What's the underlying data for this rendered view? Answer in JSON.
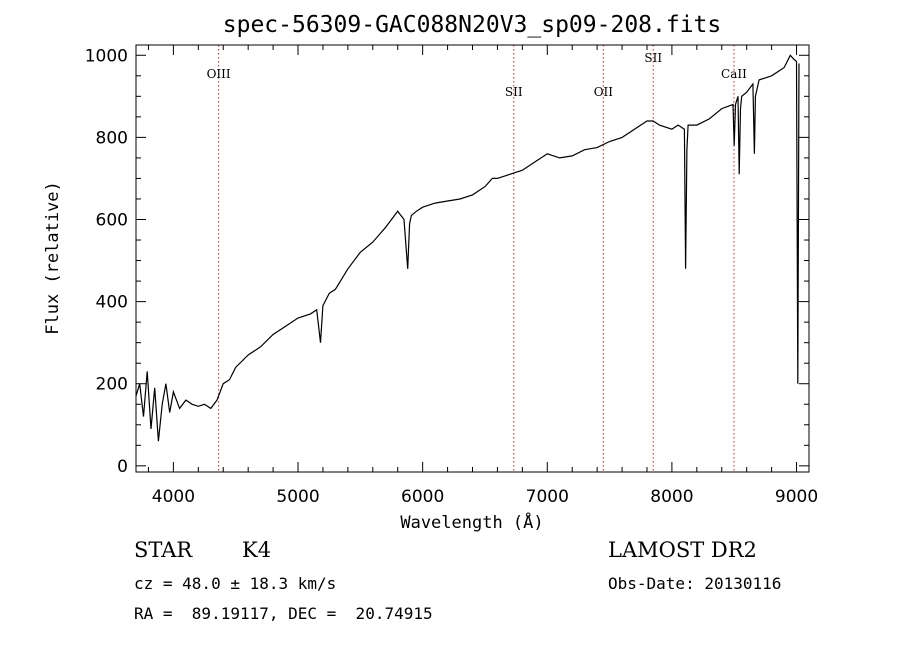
{
  "chart_data": {
    "type": "line",
    "title": "spec-56309-GAC088N20V3_sp09-208.fits",
    "xlabel": "Wavelength (Å)",
    "ylabel": "Flux (relative)",
    "xlim": [
      3700,
      9100
    ],
    "ylim": [
      -15,
      1025
    ],
    "xticks": [
      4000,
      5000,
      6000,
      7000,
      8000,
      9000
    ],
    "yticks": [
      0,
      200,
      400,
      600,
      800,
      1000
    ],
    "series": [
      {
        "x": [
          3700,
          3730,
          3760,
          3790,
          3820,
          3850,
          3880,
          3910,
          3940,
          3970,
          4000,
          4050,
          4100,
          4150,
          4200,
          4250,
          4300,
          4350,
          4400,
          4450,
          4500,
          4600,
          4700,
          4800,
          4900,
          5000,
          5100,
          5150,
          5180,
          5200,
          5250,
          5300,
          5400,
          5500,
          5600,
          5700,
          5800,
          5850,
          5880,
          5895,
          5910,
          5950,
          6000,
          6100,
          6200,
          6300,
          6400,
          6500,
          6560,
          6600,
          6700,
          6800,
          6900,
          7000,
          7100,
          7200,
          7300,
          7400,
          7500,
          7600,
          7700,
          7800,
          7850,
          7900,
          8000,
          8050,
          8100,
          8110,
          8120,
          8130,
          8200,
          8300,
          8400,
          8490,
          8500,
          8510,
          8530,
          8540,
          8550,
          8560,
          8600,
          8650,
          8662,
          8670,
          8700,
          8800,
          8900,
          8950,
          8980,
          9000,
          9010,
          9020
        ],
        "y": [
          170,
          200,
          120,
          230,
          90,
          190,
          60,
          150,
          200,
          130,
          180,
          140,
          160,
          150,
          145,
          150,
          140,
          160,
          200,
          210,
          240,
          270,
          290,
          320,
          340,
          360,
          370,
          380,
          300,
          390,
          420,
          430,
          480,
          520,
          545,
          580,
          620,
          600,
          480,
          590,
          610,
          620,
          630,
          640,
          645,
          650,
          660,
          680,
          700,
          700,
          710,
          720,
          740,
          760,
          750,
          755,
          770,
          775,
          790,
          800,
          820,
          840,
          840,
          830,
          820,
          830,
          820,
          480,
          770,
          830,
          830,
          845,
          870,
          880,
          780,
          880,
          900,
          710,
          870,
          900,
          910,
          930,
          760,
          900,
          940,
          950,
          970,
          1000,
          990,
          985,
          200,
          980
        ]
      }
    ],
    "annotations": [
      {
        "label": "OIII",
        "x": 4363
      },
      {
        "label": "SII",
        "x": 6731
      },
      {
        "label": "OII",
        "x": 7450
      },
      {
        "label": "SII",
        "x": 7850
      },
      {
        "label": "CaII",
        "x": 8498
      }
    ],
    "grid": false
  },
  "info": {
    "class": "STAR",
    "subclass": "K4",
    "survey": "LAMOST DR2",
    "cz": "cz = 48.0 ± 18.3 km/s",
    "obsdate": "Obs-Date: 20130116",
    "radec": "RA =  89.19117, DEC =  20.74915"
  }
}
